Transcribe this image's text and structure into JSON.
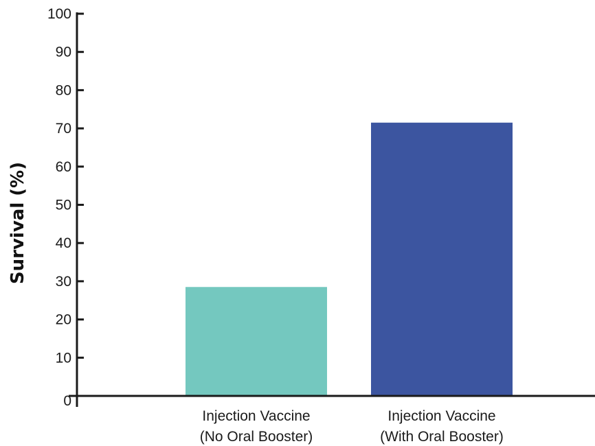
{
  "chart_data": {
    "type": "bar",
    "title": "",
    "xlabel": "",
    "ylabel": "Survival (%)",
    "ylim": [
      0,
      100
    ],
    "yticks": [
      0,
      10,
      20,
      30,
      40,
      50,
      60,
      70,
      80,
      90,
      100
    ],
    "grid": false,
    "legend": "none",
    "categories": [
      [
        "Injection Vaccine",
        "(No Oral Booster)"
      ],
      [
        "Injection Vaccine",
        "(With Oral Booster)"
      ]
    ],
    "values": [
      28.5,
      71.5
    ],
    "colors": [
      "#74c8bf",
      "#3c55a0"
    ]
  }
}
